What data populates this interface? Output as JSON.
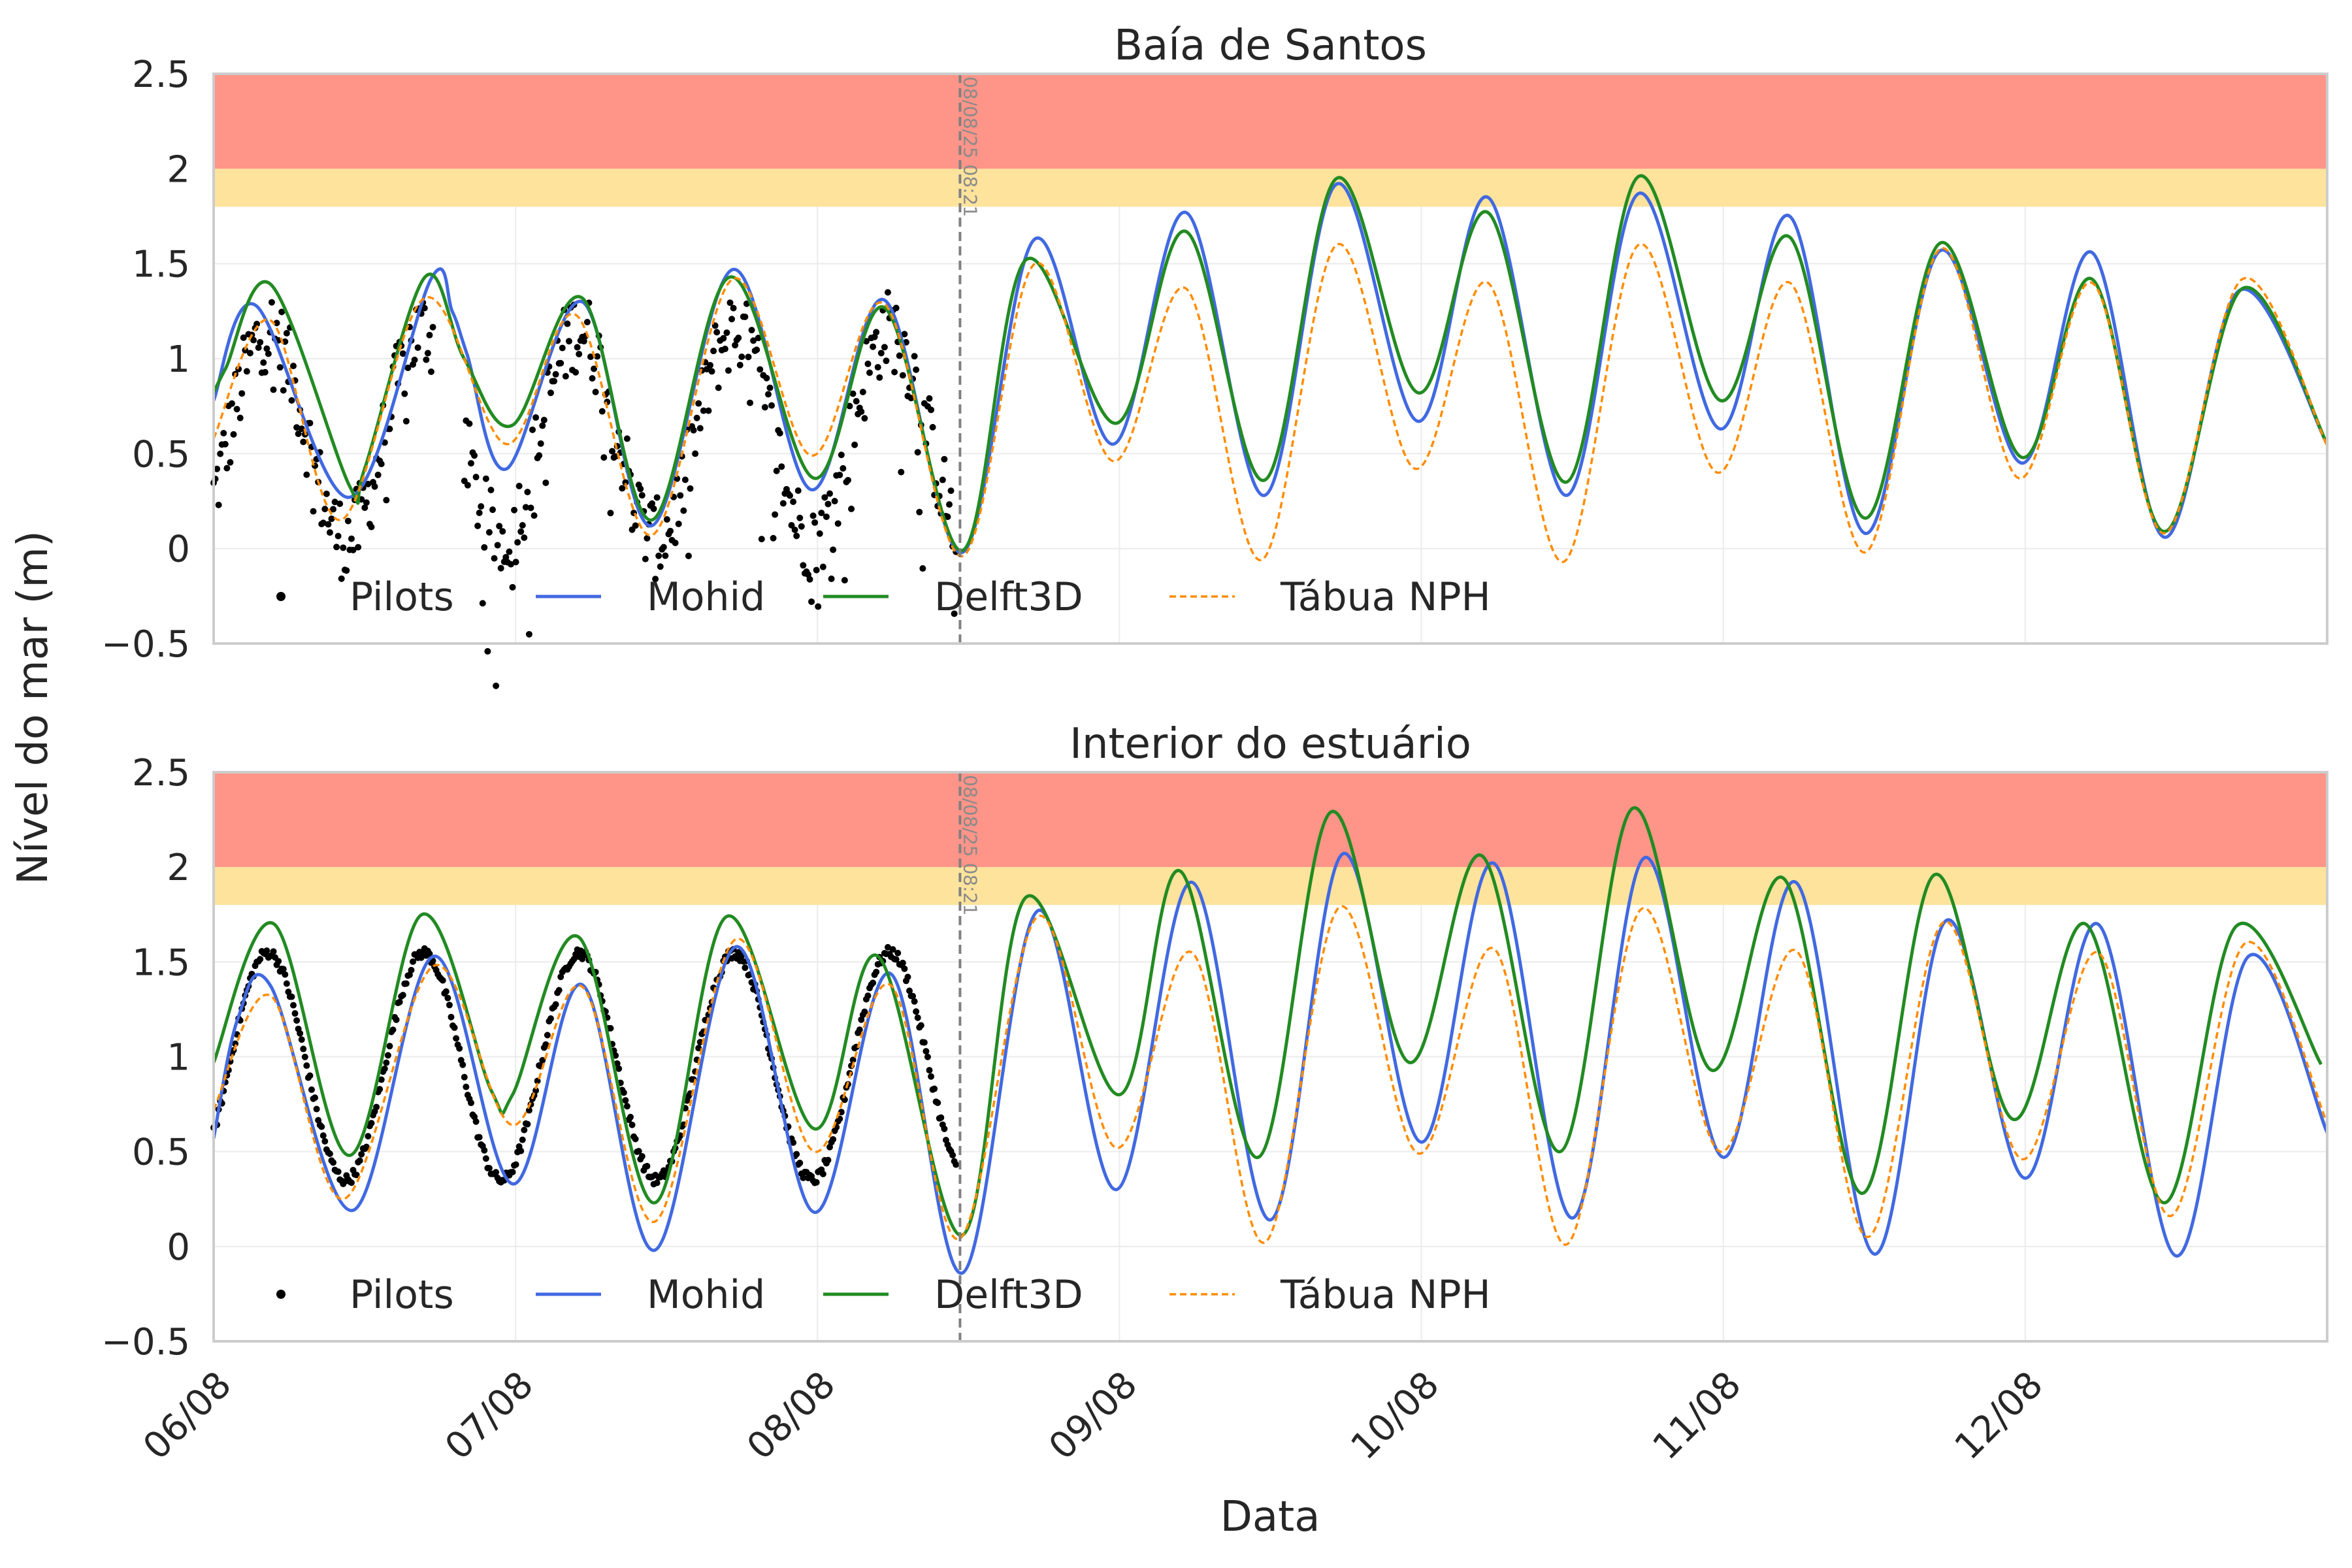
{
  "chart_data": [
    {
      "type": "line",
      "title": "Baía de Santos",
      "ylabel": "Nível do mar (m)",
      "xlabel": "",
      "ylim": [
        -0.5,
        2.5
      ],
      "yticks": [
        -0.5,
        0,
        0.5,
        1,
        1.5,
        2,
        2.5
      ],
      "ytick_labels": [
        "−0.5",
        "0",
        "0.5",
        "1",
        "1.5",
        "2",
        "2.5"
      ],
      "xlim_days": [
        0,
        7
      ],
      "grid": true,
      "legend_placement": "lower-left",
      "bands": [
        {
          "name": "alert-red",
          "y0": 2.0,
          "y1": 2.5,
          "color": "#ff9488"
        },
        {
          "name": "attention-yellow",
          "y0": 1.8,
          "y1": 2.0,
          "color": "#fde39c"
        }
      ],
      "now_marker": {
        "x_day": 2.472,
        "label": "08/08/25 08:21"
      },
      "series": [
        {
          "name": "Pilots",
          "style": "dots",
          "color": "#000000",
          "x_range": [
            0,
            2.46
          ],
          "phase": 0.0,
          "amplitude": 0.55,
          "mean": 0.6,
          "noise": 0.22
        },
        {
          "name": "Mohid",
          "style": "solid",
          "color": "#4169e1",
          "points": [
            [
              0,
              0.78
            ],
            [
              0.14,
              1.28
            ],
            [
              0.45,
              0.27
            ],
            [
              0.72,
              1.42
            ],
            [
              0.79,
              1.25
            ],
            [
              0.84,
              1.02
            ],
            [
              0.97,
              0.42
            ],
            [
              1.22,
              1.3
            ],
            [
              1.45,
              0.12
            ],
            [
              1.72,
              1.47
            ],
            [
              1.98,
              0.31
            ],
            [
              2.22,
              1.31
            ],
            [
              2.48,
              -0.02
            ],
            [
              2.72,
              1.63
            ],
            [
              2.98,
              0.55
            ],
            [
              3.22,
              1.77
            ],
            [
              3.48,
              0.28
            ],
            [
              3.72,
              1.92
            ],
            [
              3.99,
              0.67
            ],
            [
              4.22,
              1.85
            ],
            [
              4.48,
              0.28
            ],
            [
              4.72,
              1.87
            ],
            [
              4.99,
              0.63
            ],
            [
              5.22,
              1.75
            ],
            [
              5.47,
              0.08
            ],
            [
              5.72,
              1.57
            ],
            [
              5.99,
              0.45
            ],
            [
              6.22,
              1.56
            ],
            [
              6.46,
              0.06
            ],
            [
              6.71,
              1.36
            ],
            [
              7.0,
              0.55
            ]
          ]
        },
        {
          "name": "Delft3D",
          "style": "solid",
          "color": "#228b22",
          "points": [
            [
              0,
              0.82
            ],
            [
              0.04,
              0.95
            ],
            [
              0.19,
              1.39
            ],
            [
              0.45,
              0.33
            ],
            [
              0.5,
              0.42
            ],
            [
              0.7,
              1.43
            ],
            [
              0.83,
              1.0
            ],
            [
              0.99,
              0.65
            ],
            [
              1.22,
              1.32
            ],
            [
              1.45,
              0.15
            ],
            [
              1.71,
              1.43
            ],
            [
              1.99,
              0.37
            ],
            [
              2.22,
              1.27
            ],
            [
              2.48,
              -0.01
            ],
            [
              2.69,
              1.52
            ],
            [
              2.99,
              0.66
            ],
            [
              3.22,
              1.67
            ],
            [
              3.48,
              0.36
            ],
            [
              3.72,
              1.95
            ],
            [
              3.99,
              0.82
            ],
            [
              4.22,
              1.77
            ],
            [
              4.48,
              0.35
            ],
            [
              4.72,
              1.96
            ],
            [
              4.99,
              0.78
            ],
            [
              5.22,
              1.64
            ],
            [
              5.47,
              0.16
            ],
            [
              5.72,
              1.61
            ],
            [
              5.99,
              0.48
            ],
            [
              6.22,
              1.42
            ],
            [
              6.46,
              0.09
            ],
            [
              6.72,
              1.37
            ],
            [
              7.0,
              0.55
            ]
          ]
        },
        {
          "name": "Tábua NPH",
          "style": "dashed",
          "color": "#ff8c00",
          "points": [
            [
              0,
              0.58
            ],
            [
              0.19,
              1.2
            ],
            [
              0.42,
              0.15
            ],
            [
              0.7,
              1.32
            ],
            [
              0.97,
              0.55
            ],
            [
              1.2,
              1.23
            ],
            [
              1.45,
              0.07
            ],
            [
              1.72,
              1.42
            ],
            [
              1.98,
              0.49
            ],
            [
              2.22,
              1.29
            ],
            [
              2.48,
              -0.04
            ],
            [
              2.72,
              1.5
            ],
            [
              2.98,
              0.46
            ],
            [
              3.22,
              1.37
            ],
            [
              3.47,
              -0.06
            ],
            [
              3.72,
              1.6
            ],
            [
              3.98,
              0.42
            ],
            [
              4.22,
              1.4
            ],
            [
              4.47,
              -0.07
            ],
            [
              4.72,
              1.6
            ],
            [
              4.98,
              0.4
            ],
            [
              5.22,
              1.4
            ],
            [
              5.47,
              -0.02
            ],
            [
              5.72,
              1.58
            ],
            [
              5.98,
              0.37
            ],
            [
              6.22,
              1.4
            ],
            [
              6.46,
              0.08
            ],
            [
              6.72,
              1.42
            ],
            [
              7.0,
              0.54
            ]
          ]
        }
      ]
    },
    {
      "type": "line",
      "title": "Interior do estuário",
      "ylabel": "",
      "xlabel": "Data",
      "ylim": [
        -0.5,
        2.5
      ],
      "yticks": [
        -0.5,
        0,
        0.5,
        1,
        1.5,
        2,
        2.5
      ],
      "ytick_labels": [
        "−0.5",
        "0",
        "0.5",
        "1",
        "1.5",
        "2",
        "2.5"
      ],
      "xlim_days": [
        0,
        7
      ],
      "xticks_days": [
        0,
        1,
        2,
        3,
        4,
        5,
        6
      ],
      "xtick_labels": [
        "06/08",
        "07/08",
        "08/08",
        "09/08",
        "10/08",
        "11/08",
        "12/08"
      ],
      "grid": true,
      "legend_placement": "lower-left",
      "bands": [
        {
          "name": "alert-red",
          "y0": 2.0,
          "y1": 2.5,
          "color": "#ff9488"
        },
        {
          "name": "attention-yellow",
          "y0": 1.8,
          "y1": 2.0,
          "color": "#fde39c"
        }
      ],
      "now_marker": {
        "x_day": 2.472,
        "label": "08/08/25 08:21"
      },
      "series": [
        {
          "name": "Pilots",
          "style": "dots",
          "color": "#000000",
          "x_range": [
            0,
            2.46
          ],
          "phase": 0.0,
          "amplitude": 0.6,
          "mean": 0.95,
          "noise": 0.03
        },
        {
          "name": "Mohid",
          "style": "solid",
          "color": "#4169e1",
          "points": [
            [
              0,
              0.57
            ],
            [
              0.08,
              1.2
            ],
            [
              0.19,
              1.37
            ],
            [
              0.46,
              0.19
            ],
            [
              0.73,
              1.53
            ],
            [
              0.99,
              0.33
            ],
            [
              1.22,
              1.38
            ],
            [
              1.46,
              -0.02
            ],
            [
              1.73,
              1.58
            ],
            [
              1.99,
              0.18
            ],
            [
              2.24,
              1.44
            ],
            [
              2.48,
              -0.14
            ],
            [
              2.73,
              1.77
            ],
            [
              2.99,
              0.3
            ],
            [
              3.24,
              1.92
            ],
            [
              3.5,
              0.14
            ],
            [
              3.74,
              2.07
            ],
            [
              4.0,
              0.55
            ],
            [
              4.24,
              2.02
            ],
            [
              4.5,
              0.15
            ],
            [
              4.74,
              2.05
            ],
            [
              5.0,
              0.47
            ],
            [
              5.24,
              1.92
            ],
            [
              5.5,
              -0.04
            ],
            [
              5.74,
              1.72
            ],
            [
              6.0,
              0.36
            ],
            [
              6.24,
              1.7
            ],
            [
              6.5,
              -0.05
            ],
            [
              6.74,
              1.53
            ],
            [
              7.0,
              0.6
            ]
          ]
        },
        {
          "name": "Delft3D",
          "style": "solid",
          "color": "#228b22",
          "points": [
            [
              0,
              0.97
            ],
            [
              0.2,
              1.7
            ],
            [
              0.45,
              0.48
            ],
            [
              0.69,
              1.75
            ],
            [
              0.92,
              0.82
            ],
            [
              0.99,
              0.8
            ],
            [
              1.21,
              1.63
            ],
            [
              1.46,
              0.23
            ],
            [
              1.7,
              1.74
            ],
            [
              1.99,
              0.62
            ],
            [
              2.2,
              1.53
            ],
            [
              2.48,
              0.06
            ],
            [
              2.69,
              1.84
            ],
            [
              3.0,
              0.8
            ],
            [
              3.2,
              1.98
            ],
            [
              3.46,
              0.47
            ],
            [
              3.7,
              2.29
            ],
            [
              3.96,
              0.97
            ],
            [
              4.2,
              2.06
            ],
            [
              4.46,
              0.5
            ],
            [
              4.7,
              2.31
            ],
            [
              4.96,
              0.93
            ],
            [
              5.2,
              1.94
            ],
            [
              5.46,
              0.28
            ],
            [
              5.7,
              1.96
            ],
            [
              5.96,
              0.67
            ],
            [
              6.2,
              1.7
            ],
            [
              6.46,
              0.23
            ],
            [
              6.7,
              1.69
            ],
            [
              6.98,
              0.96
            ]
          ]
        },
        {
          "name": "Tábua NPH",
          "style": "dashed",
          "color": "#ff8c00",
          "points": [
            [
              0,
              0.72
            ],
            [
              0.19,
              1.32
            ],
            [
              0.43,
              0.25
            ],
            [
              0.73,
              1.48
            ],
            [
              0.99,
              0.64
            ],
            [
              1.22,
              1.37
            ],
            [
              1.46,
              0.13
            ],
            [
              1.73,
              1.62
            ],
            [
              1.99,
              0.5
            ],
            [
              2.24,
              1.38
            ],
            [
              2.47,
              0.04
            ],
            [
              2.73,
              1.74
            ],
            [
              2.99,
              0.52
            ],
            [
              3.24,
              1.55
            ],
            [
              3.48,
              0.02
            ],
            [
              3.73,
              1.79
            ],
            [
              3.99,
              0.49
            ],
            [
              4.24,
              1.57
            ],
            [
              4.48,
              0.01
            ],
            [
              4.73,
              1.78
            ],
            [
              4.99,
              0.5
            ],
            [
              5.24,
              1.56
            ],
            [
              5.48,
              0.05
            ],
            [
              5.73,
              1.71
            ],
            [
              5.99,
              0.46
            ],
            [
              6.24,
              1.55
            ],
            [
              6.48,
              0.16
            ],
            [
              6.73,
              1.6
            ],
            [
              7.0,
              0.65
            ]
          ]
        }
      ]
    }
  ]
}
